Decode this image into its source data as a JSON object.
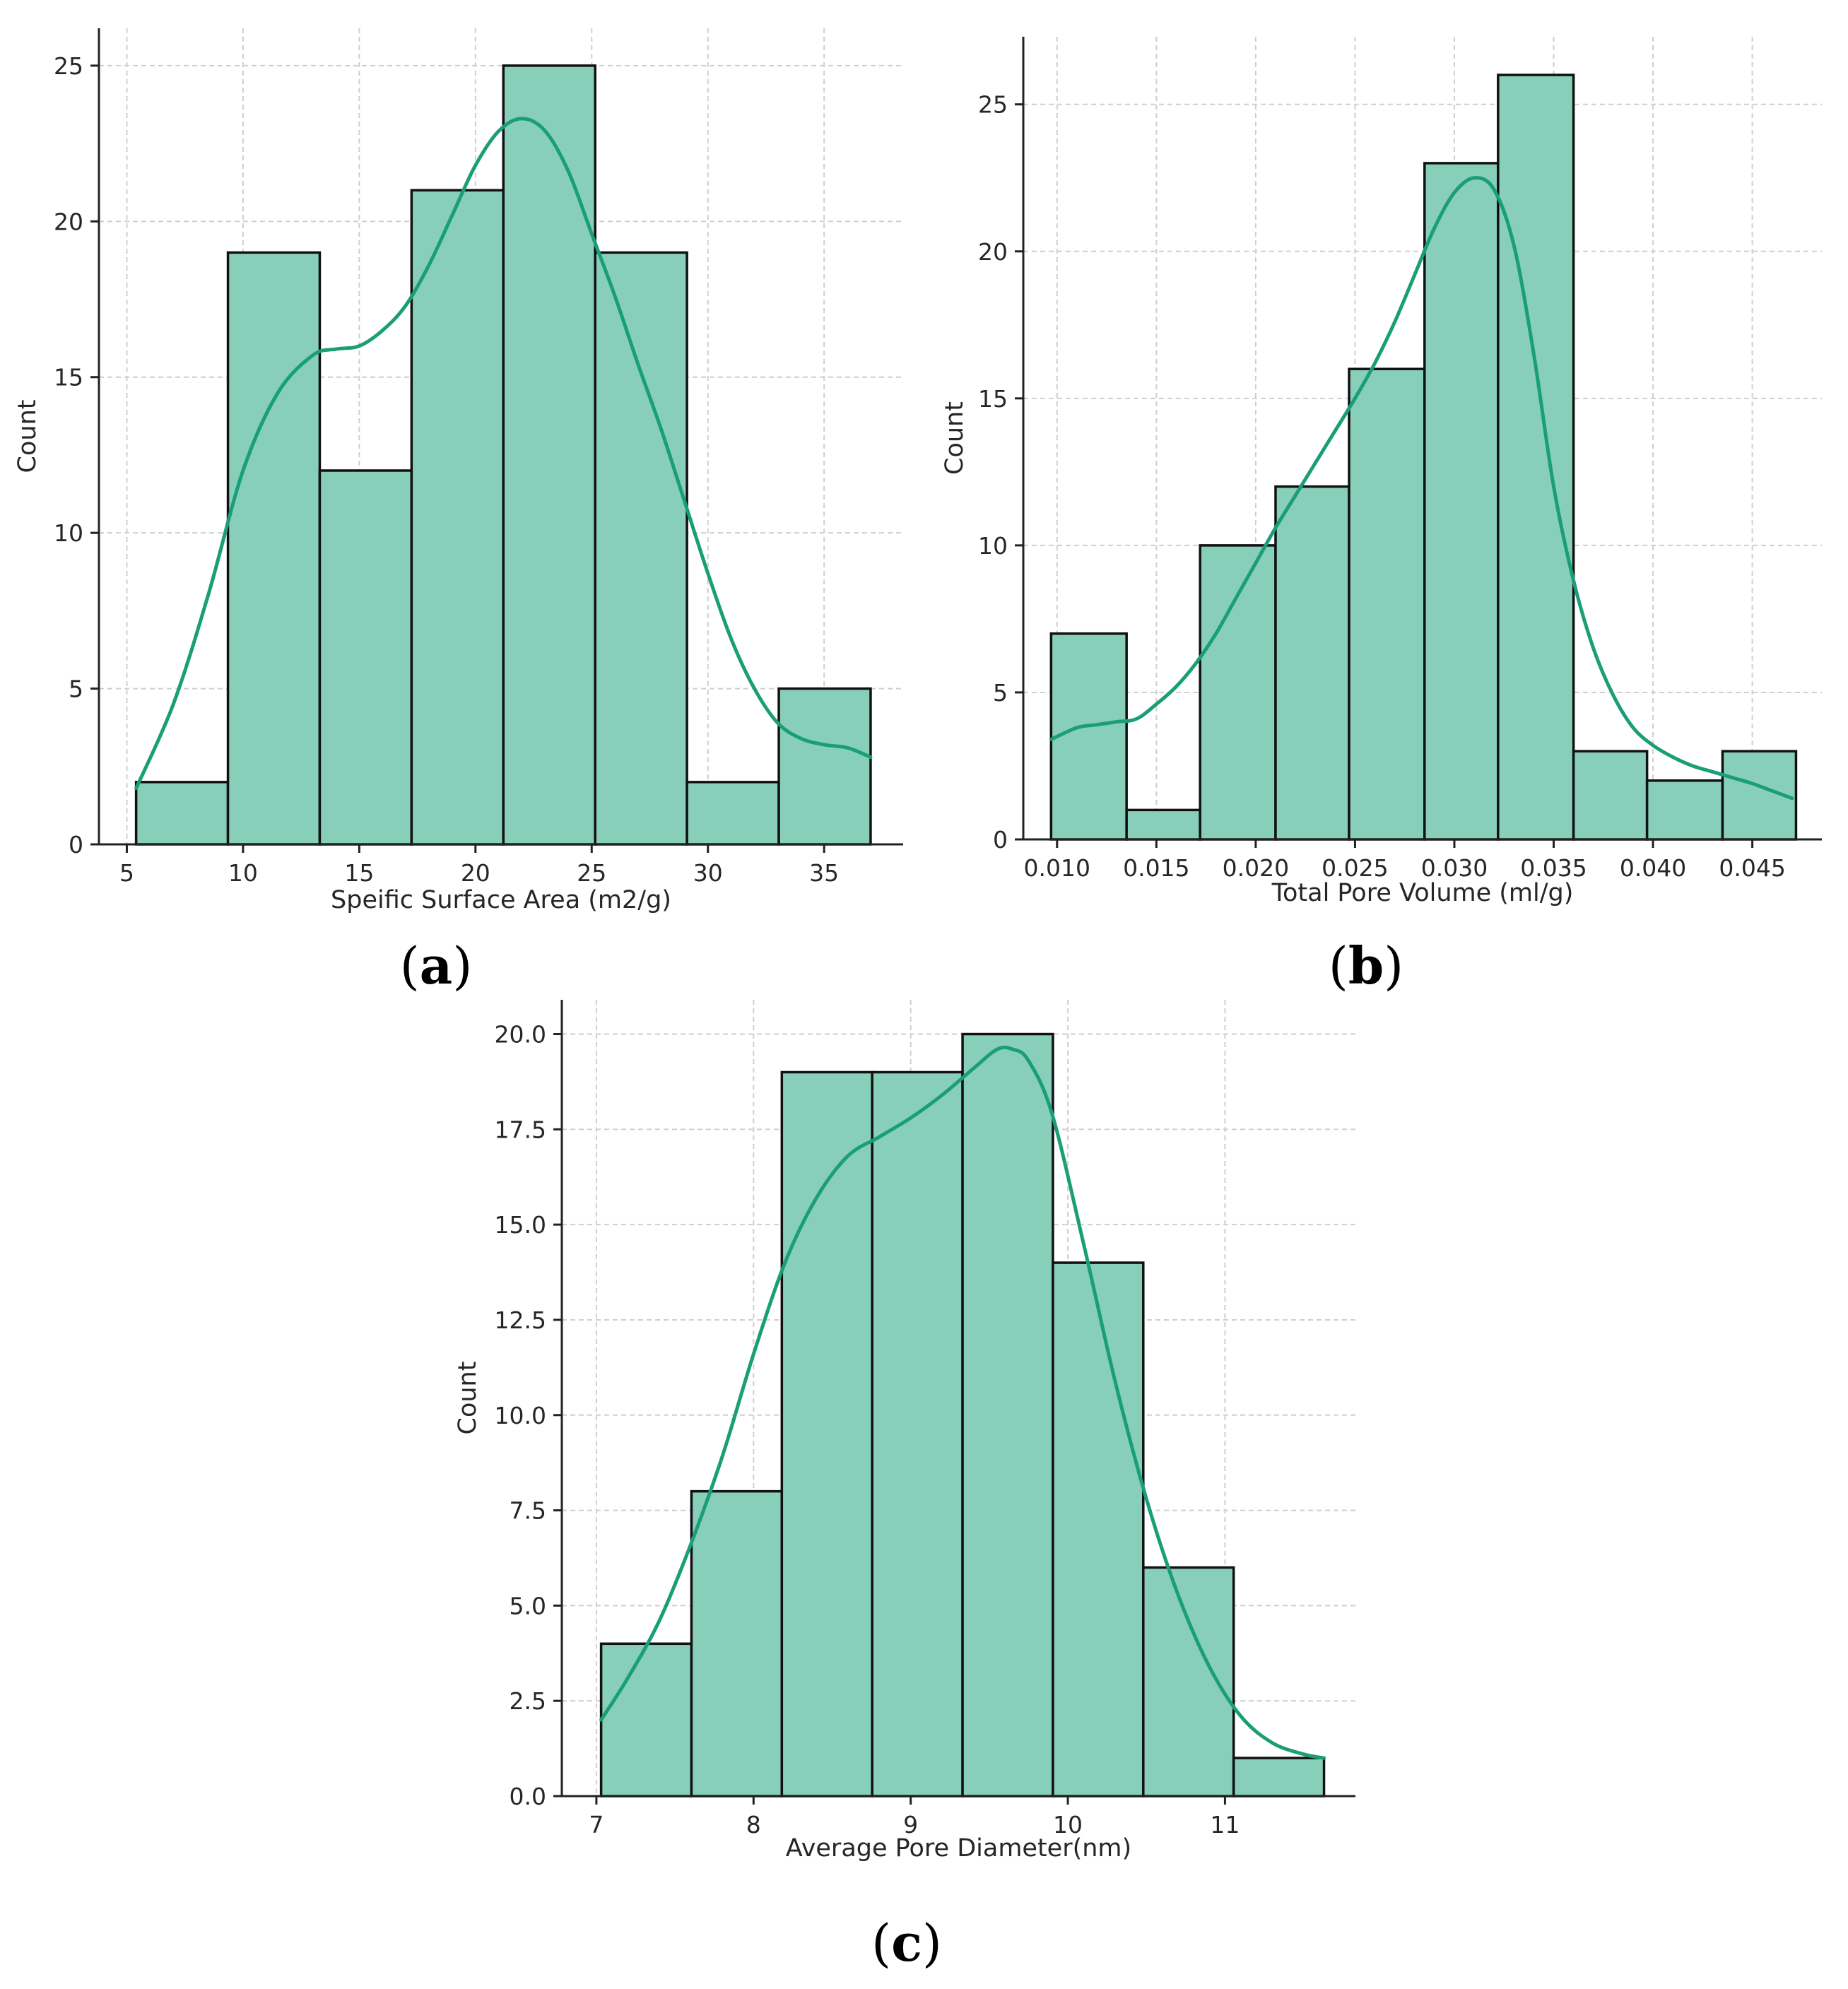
{
  "colors": {
    "bar_fill": "#88cfba",
    "bar_edge": "#111111",
    "kde_line": "#1a9e78"
  },
  "chart_data": [
    {
      "id": "a",
      "type": "bar",
      "subtype": "histogram-with-kde",
      "panel_label": "a",
      "title": "",
      "xlabel": "Speific Surface Area (m2/g)",
      "ylabel": "Count",
      "xlim": [
        3.8,
        38.4
      ],
      "ylim": [
        0,
        26.2
      ],
      "xticks": [
        5,
        10,
        15,
        20,
        25,
        30,
        35
      ],
      "xtick_labels": [
        "5",
        "10",
        "15",
        "20",
        "25",
        "30",
        "35"
      ],
      "yticks": [
        0,
        5,
        10,
        15,
        20,
        25
      ],
      "ytick_labels": [
        "0",
        "5",
        "10",
        "15",
        "20",
        "25"
      ],
      "grid": true,
      "bins": [
        {
          "x0": 5.4,
          "x1": 9.35,
          "count": 2
        },
        {
          "x0": 9.35,
          "x1": 13.3,
          "count": 19
        },
        {
          "x0": 13.3,
          "x1": 17.25,
          "count": 12
        },
        {
          "x0": 17.25,
          "x1": 21.2,
          "count": 21
        },
        {
          "x0": 21.2,
          "x1": 25.15,
          "count": 25
        },
        {
          "x0": 25.15,
          "x1": 29.1,
          "count": 19
        },
        {
          "x0": 29.1,
          "x1": 33.05,
          "count": 2
        },
        {
          "x0": 33.05,
          "x1": 37.0,
          "count": 5
        }
      ],
      "kde": {
        "x": [
          5.4,
          7,
          8.5,
          10,
          11.5,
          13,
          14,
          15,
          16,
          17,
          18,
          19,
          20,
          21,
          22,
          23,
          24,
          25,
          26,
          27,
          28,
          29,
          30,
          31,
          32,
          33,
          34,
          35,
          36,
          37
        ],
        "y": [
          1.8,
          4.5,
          8.0,
          12.0,
          14.5,
          15.7,
          15.9,
          16.0,
          16.5,
          17.3,
          18.6,
          20.2,
          21.8,
          22.9,
          23.3,
          22.9,
          21.6,
          19.6,
          17.6,
          15.4,
          13.3,
          11.0,
          8.7,
          6.6,
          5.0,
          3.9,
          3.4,
          3.2,
          3.1,
          2.8
        ]
      }
    },
    {
      "id": "b",
      "type": "bar",
      "subtype": "histogram-with-kde",
      "panel_label": "b",
      "title": "",
      "xlabel": "Total Pore Volume (ml/g)",
      "ylabel": "Count",
      "xlim": [
        0.0083,
        0.0485
      ],
      "ylim": [
        0,
        27.3
      ],
      "xticks": [
        0.01,
        0.015,
        0.02,
        0.025,
        0.03,
        0.035,
        0.04,
        0.045
      ],
      "xtick_labels": [
        "0.010",
        "0.015",
        "0.020",
        "0.025",
        "0.030",
        "0.035",
        "0.040",
        "0.045"
      ],
      "yticks": [
        0,
        5,
        10,
        15,
        20,
        25
      ],
      "ytick_labels": [
        "0",
        "5",
        "10",
        "15",
        "20",
        "25"
      ],
      "grid": true,
      "bins": [
        {
          "x0": 0.0097,
          "x1": 0.0135,
          "count": 7
        },
        {
          "x0": 0.0135,
          "x1": 0.0172,
          "count": 1
        },
        {
          "x0": 0.0172,
          "x1": 0.021,
          "count": 10
        },
        {
          "x0": 0.021,
          "x1": 0.0247,
          "count": 12
        },
        {
          "x0": 0.0247,
          "x1": 0.0285,
          "count": 16
        },
        {
          "x0": 0.0285,
          "x1": 0.0322,
          "count": 23
        },
        {
          "x0": 0.0322,
          "x1": 0.036,
          "count": 26
        },
        {
          "x0": 0.036,
          "x1": 0.0397,
          "count": 3
        },
        {
          "x0": 0.0397,
          "x1": 0.0435,
          "count": 2
        },
        {
          "x0": 0.0435,
          "x1": 0.0472,
          "count": 3
        }
      ],
      "kde": {
        "x": [
          0.0097,
          0.011,
          0.012,
          0.013,
          0.014,
          0.015,
          0.016,
          0.017,
          0.018,
          0.019,
          0.02,
          0.021,
          0.022,
          0.023,
          0.024,
          0.025,
          0.026,
          0.027,
          0.028,
          0.029,
          0.03,
          0.031,
          0.032,
          0.033,
          0.034,
          0.035,
          0.036,
          0.037,
          0.038,
          0.039,
          0.04,
          0.041,
          0.042,
          0.043,
          0.044,
          0.045,
          0.046,
          0.047
        ],
        "y": [
          3.4,
          3.8,
          3.9,
          4.0,
          4.1,
          4.6,
          5.2,
          6.0,
          7.0,
          8.2,
          9.4,
          10.6,
          11.7,
          12.8,
          13.9,
          15.0,
          16.2,
          17.6,
          19.2,
          20.8,
          22.0,
          22.5,
          22.1,
          20.2,
          16.5,
          12.0,
          8.8,
          6.5,
          4.9,
          3.8,
          3.2,
          2.8,
          2.5,
          2.3,
          2.1,
          1.9,
          1.65,
          1.4
        ]
      }
    },
    {
      "id": "c",
      "type": "bar",
      "subtype": "histogram-with-kde",
      "panel_label": "c",
      "title": "",
      "xlabel": "Average Pore Diameter(nm)",
      "ylabel": "Count",
      "xlim": [
        6.78,
        11.83
      ],
      "ylim": [
        0,
        20.9
      ],
      "xticks": [
        7,
        8,
        9,
        10,
        11
      ],
      "xtick_labels": [
        "7",
        "8",
        "9",
        "10",
        "11"
      ],
      "yticks": [
        0,
        2.5,
        5,
        7.5,
        10,
        12.5,
        15,
        17.5,
        20
      ],
      "ytick_labels": [
        "0.0",
        "2.5",
        "5.0",
        "7.5",
        "10.0",
        "12.5",
        "15.0",
        "17.5",
        "20.0"
      ],
      "grid": true,
      "bins": [
        {
          "x0": 7.03,
          "x1": 7.605,
          "count": 4
        },
        {
          "x0": 7.605,
          "x1": 8.18,
          "count": 8
        },
        {
          "x0": 8.18,
          "x1": 8.755,
          "count": 19
        },
        {
          "x0": 8.755,
          "x1": 9.33,
          "count": 19
        },
        {
          "x0": 9.33,
          "x1": 9.905,
          "count": 20
        },
        {
          "x0": 9.905,
          "x1": 10.48,
          "count": 14
        },
        {
          "x0": 10.48,
          "x1": 11.055,
          "count": 6
        },
        {
          "x0": 11.055,
          "x1": 11.63,
          "count": 1
        }
      ],
      "kde": {
        "x": [
          7.03,
          7.2,
          7.4,
          7.6,
          7.8,
          8.0,
          8.2,
          8.4,
          8.6,
          8.8,
          9.0,
          9.2,
          9.4,
          9.55,
          9.65,
          9.75,
          9.9,
          10.1,
          10.3,
          10.5,
          10.7,
          10.9,
          11.1,
          11.3,
          11.5,
          11.63
        ],
        "y": [
          2.0,
          3.1,
          4.6,
          6.6,
          8.9,
          11.6,
          14.0,
          15.7,
          16.8,
          17.3,
          17.8,
          18.4,
          19.1,
          19.6,
          19.6,
          19.3,
          17.9,
          14.5,
          10.9,
          7.8,
          5.3,
          3.4,
          2.1,
          1.4,
          1.1,
          1.0
        ]
      }
    }
  ]
}
